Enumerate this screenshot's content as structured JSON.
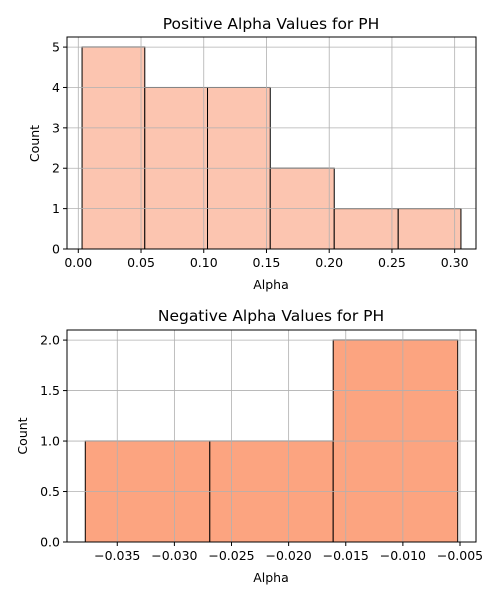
{
  "chart_data": [
    {
      "type": "bar",
      "title": "Positive Alpha Values for PH",
      "xlabel": "Alpha",
      "ylabel": "Count",
      "bin_edges": [
        0.003,
        0.053,
        0.103,
        0.153,
        0.204,
        0.255,
        0.305
      ],
      "values": [
        5,
        4,
        4,
        2,
        1,
        1
      ],
      "xlim": [
        -0.009,
        0.317
      ],
      "ylim": [
        0,
        5.25
      ],
      "xticks": [
        0.0,
        0.05,
        0.1,
        0.15,
        0.2,
        0.25,
        0.3
      ],
      "xtick_labels": [
        "0.00",
        "0.05",
        "0.10",
        "0.15",
        "0.20",
        "0.25",
        "0.30"
      ],
      "yticks": [
        0,
        1,
        2,
        3,
        4,
        5
      ],
      "ytick_labels": [
        "0",
        "1",
        "2",
        "3",
        "4",
        "5"
      ],
      "bar_color": "#fcc5b0",
      "grid": true,
      "legend": "none"
    },
    {
      "type": "bar",
      "title": "Negative Alpha Values for PH",
      "xlabel": "Alpha",
      "ylabel": "Count",
      "bin_edges": [
        -0.0378,
        -0.0269,
        -0.0161,
        -0.0052
      ],
      "values": [
        1,
        1,
        2
      ],
      "xlim": [
        -0.0394,
        -0.0036
      ],
      "ylim": [
        0,
        2.1
      ],
      "xticks": [
        -0.035,
        -0.03,
        -0.025,
        -0.02,
        -0.015,
        -0.01,
        -0.005
      ],
      "xtick_labels": [
        "−0.035",
        "−0.030",
        "−0.025",
        "−0.020",
        "−0.015",
        "−0.010",
        "−0.005"
      ],
      "yticks": [
        0,
        0.5,
        1.0,
        1.5,
        2.0
      ],
      "ytick_labels": [
        "0.0",
        "0.5",
        "1.0",
        "1.5",
        "2.0"
      ],
      "bar_color": "#fca480",
      "grid": true,
      "legend": "none"
    }
  ]
}
